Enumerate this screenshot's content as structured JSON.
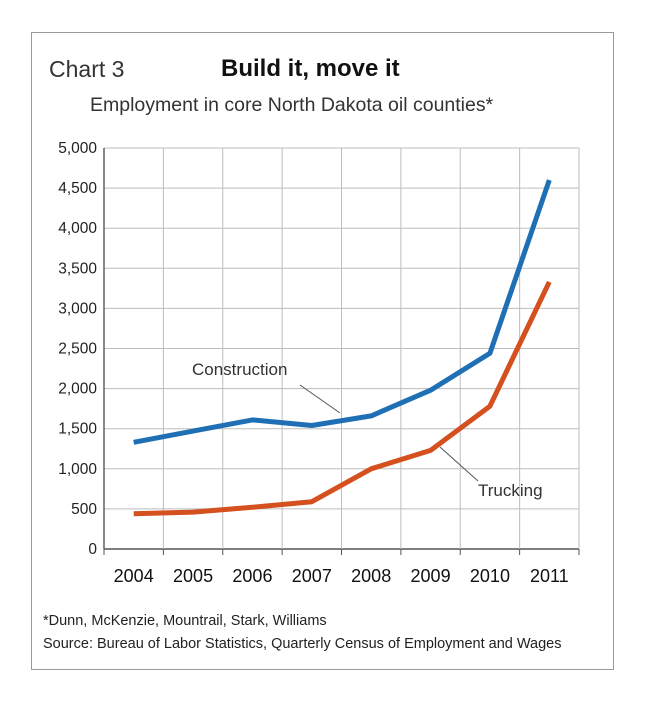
{
  "header": {
    "chart_number": "Chart 3",
    "title": "Build it, move it",
    "subtitle": "Employment in core North Dakota oil counties*"
  },
  "footer": {
    "footnote": "*Dunn, McKenzie, Mountrail, Stark, Williams",
    "source": "Source: Bureau of Labor Statistics, Quarterly Census of Employment and Wages"
  },
  "chart_data": {
    "type": "line",
    "title": "Build it, move it",
    "subtitle": "Employment in core North Dakota oil counties*",
    "xlabel": "",
    "ylabel": "",
    "x": [
      "2004",
      "2005",
      "2006",
      "2007",
      "2008",
      "2009",
      "2010",
      "2011"
    ],
    "ylim": [
      0,
      5000
    ],
    "y_ticks": [
      0,
      500,
      1000,
      1500,
      2000,
      2500,
      3000,
      3500,
      4000,
      4500,
      5000
    ],
    "y_tick_labels": [
      "0",
      "500",
      "1,000",
      "1,500",
      "2,000",
      "2,500",
      "3,000",
      "3,500",
      "4,000",
      "4,500",
      "5,000"
    ],
    "grid": true,
    "legend": "none (series labeled directly on chart)",
    "series": [
      {
        "name": "Construction",
        "color": "#1f6fb5",
        "values": [
          1330,
          1470,
          1610,
          1540,
          1660,
          1980,
          2440,
          4600
        ]
      },
      {
        "name": "Trucking",
        "color": "#d4501f",
        "values": [
          440,
          460,
          520,
          590,
          1000,
          1230,
          1780,
          3330
        ]
      }
    ]
  }
}
